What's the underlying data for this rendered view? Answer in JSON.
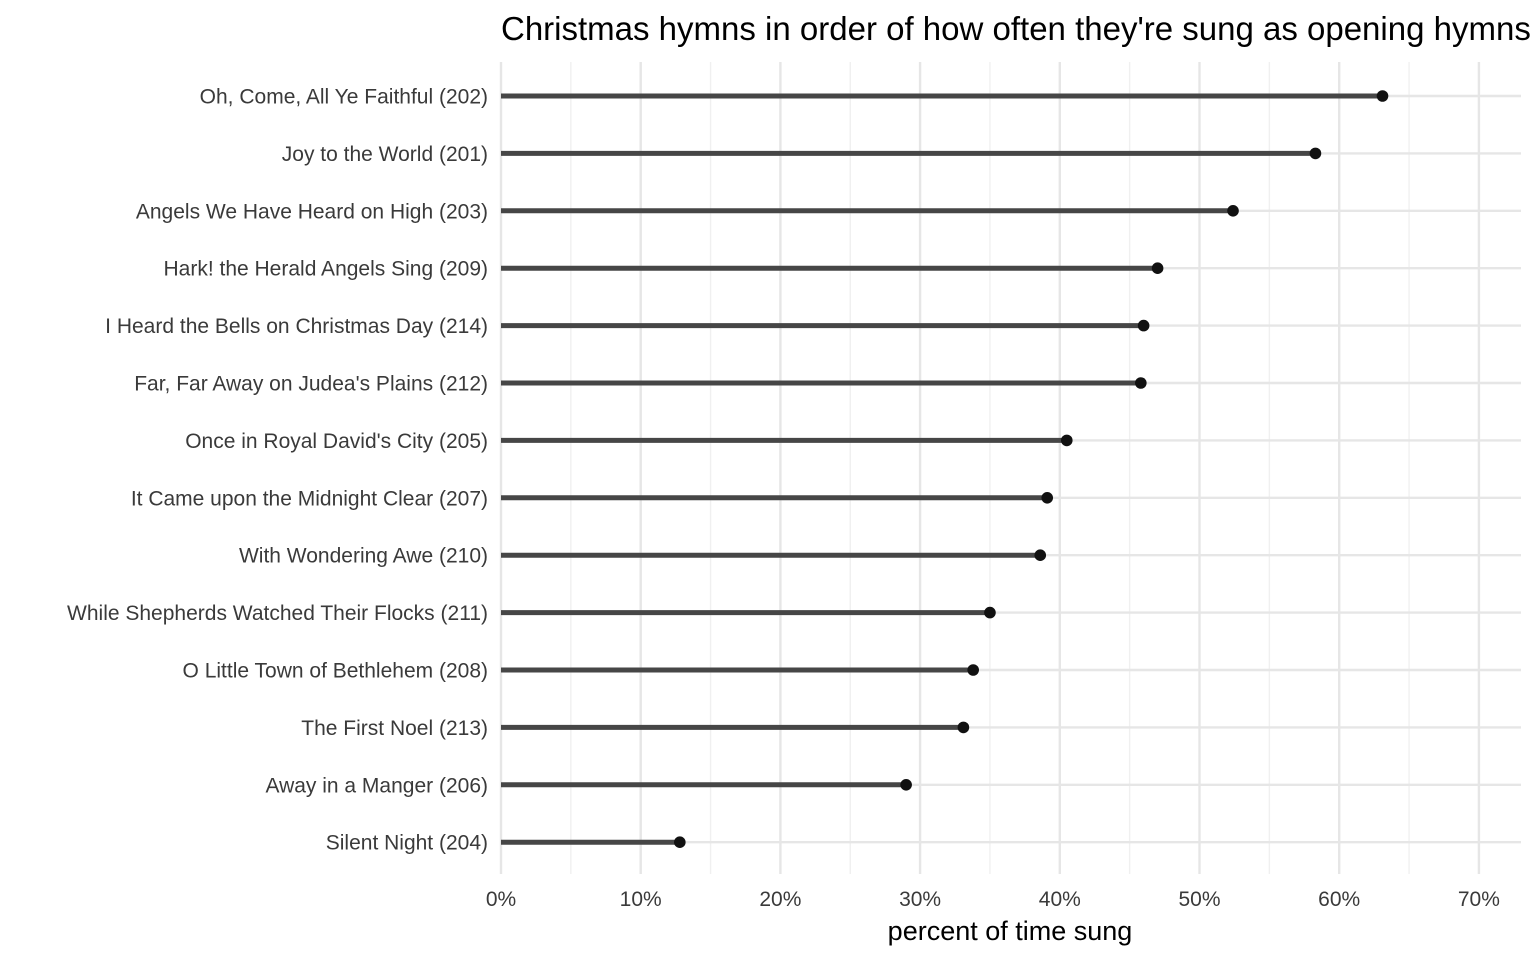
{
  "chart_data": {
    "type": "lollipop",
    "orientation": "horizontal",
    "title": "Christmas hymns in order of how often they're sung as opening hymns",
    "subtitle": "",
    "xlabel": "percent of time sung",
    "ylabel": "",
    "xlim": [
      0,
      73
    ],
    "x_ticks": [
      0,
      10,
      20,
      30,
      40,
      50,
      60,
      70
    ],
    "x_tick_labels": [
      "0%",
      "10%",
      "20%",
      "30%",
      "40%",
      "50%",
      "60%",
      "70%"
    ],
    "grid": true,
    "legend": "none",
    "categories": [
      "Oh, Come, All Ye Faithful (202)",
      "Joy to the World (201)",
      "Angels We Have Heard on High (203)",
      "Hark! the Herald Angels Sing (209)",
      "I Heard the Bells on Christmas Day (214)",
      "Far, Far Away on Judea's Plains (212)",
      "Once in Royal David's City (205)",
      "It Came upon the Midnight Clear (207)",
      "With Wondering Awe (210)",
      "While Shepherds Watched Their Flocks (211)",
      "O Little Town of Bethlehem (208)",
      "The First Noel (213)",
      "Away in a Manger (206)",
      "Silent Night (204)"
    ],
    "values": [
      63.1,
      58.3,
      52.4,
      47.0,
      46.0,
      45.8,
      40.5,
      39.1,
      38.6,
      35.0,
      33.8,
      33.1,
      29.0,
      12.8
    ],
    "colors": {
      "stem": "#464646",
      "point": "#111111",
      "grid_major": "#e6e6e6",
      "grid_minor": "#f0f0f0"
    }
  }
}
